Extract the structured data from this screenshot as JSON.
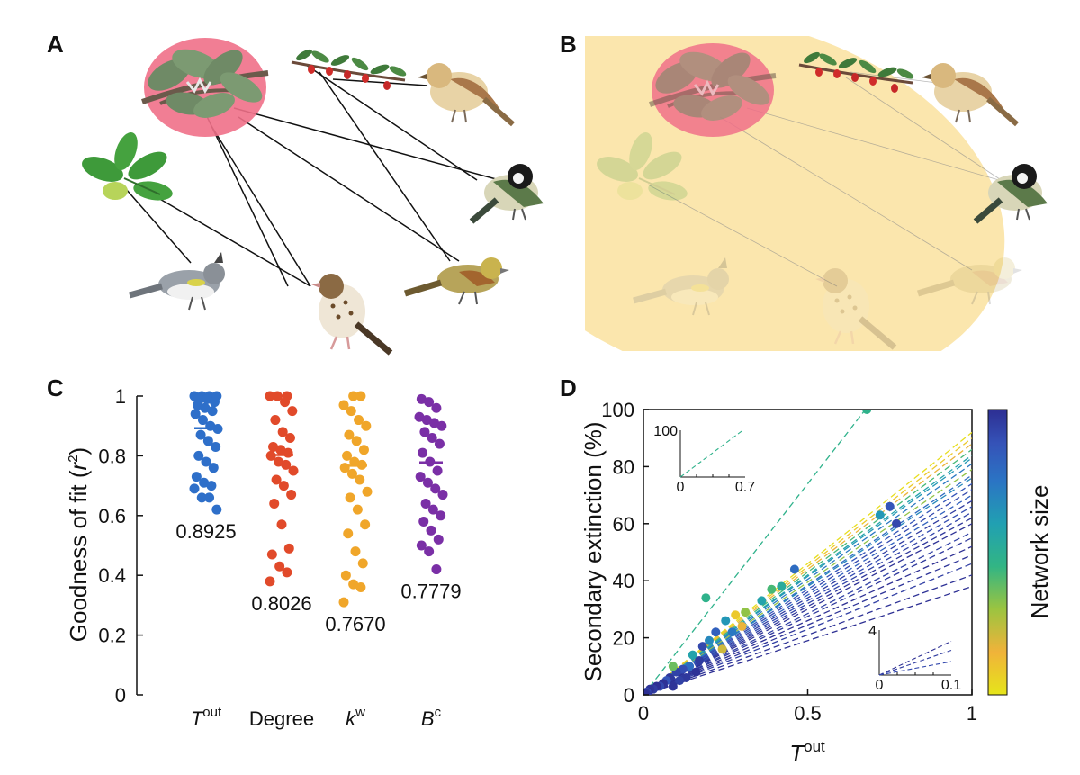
{
  "panels": {
    "a": {
      "label": "A"
    },
    "b": {
      "label": "B"
    },
    "c": {
      "label": "C"
    },
    "d": {
      "label": "D"
    }
  },
  "colors": {
    "web_highlight": "#f07088",
    "extinction_area": "#fbe6ad",
    "tout": "#2e6fc9",
    "degree": "#e14a2a",
    "kw": "#f0a62a",
    "bc": "#7a2fa6"
  },
  "icons": {
    "plant_top": "pine-branch-icon",
    "plant_right": "berry-branch-icon",
    "plant_left": "leaf-icon",
    "birds": [
      "sparrow-icon",
      "tit-icon",
      "warbler-icon",
      "thrush-icon",
      "bunting-icon"
    ]
  },
  "chart_data": [
    {
      "type": "scatter",
      "panel": "C",
      "ylabel_main": "Goodness of fit (",
      "ylabel_var": "r",
      "ylabel_sup": "2",
      "ylabel_end": ")",
      "ylim": [
        0,
        1
      ],
      "yticks": [
        "0",
        "0.2",
        "0.4",
        "0.6",
        "0.8",
        "1"
      ],
      "categories": [
        {
          "main": "T",
          "sup": "out"
        },
        {
          "main": "Degree",
          "sup": ""
        },
        {
          "main": "k",
          "sup": "w"
        },
        {
          "main": "B",
          "sup": "c"
        }
      ],
      "series": [
        {
          "values": [
            1.0,
            1.0,
            1.0,
            1.0,
            0.99,
            0.99,
            0.98,
            0.97,
            0.96,
            0.95,
            0.94,
            0.92,
            0.9,
            0.89,
            0.87,
            0.85,
            0.83,
            0.8,
            0.78,
            0.76,
            0.73,
            0.71,
            0.7,
            0.69,
            0.66,
            0.66,
            0.62
          ],
          "mean": 0.8925,
          "mean_label": "0.8925"
        },
        {
          "values": [
            1.0,
            1.0,
            1.0,
            0.98,
            0.95,
            0.92,
            0.88,
            0.86,
            0.83,
            0.82,
            0.81,
            0.8,
            0.78,
            0.77,
            0.75,
            0.72,
            0.7,
            0.67,
            0.64,
            0.57,
            0.49,
            0.47,
            0.43,
            0.41,
            0.38
          ],
          "mean": 0.8026,
          "mean_label": "0.8026"
        },
        {
          "values": [
            1.0,
            1.0,
            0.97,
            0.95,
            0.92,
            0.9,
            0.87,
            0.85,
            0.82,
            0.8,
            0.78,
            0.77,
            0.76,
            0.74,
            0.72,
            0.68,
            0.66,
            0.62,
            0.57,
            0.54,
            0.48,
            0.44,
            0.4,
            0.37,
            0.36,
            0.31
          ],
          "mean": 0.767,
          "mean_label": "0.7670"
        },
        {
          "values": [
            0.99,
            0.98,
            0.96,
            0.93,
            0.92,
            0.91,
            0.9,
            0.88,
            0.86,
            0.84,
            0.81,
            0.78,
            0.75,
            0.73,
            0.71,
            0.69,
            0.67,
            0.64,
            0.62,
            0.6,
            0.58,
            0.55,
            0.52,
            0.5,
            0.48,
            0.42
          ],
          "mean": 0.7779,
          "mean_label": "0.7779"
        }
      ]
    },
    {
      "type": "scatter",
      "panel": "D",
      "xlabel_main": "T",
      "xlabel_sup": "out",
      "ylabel": "Secondary extinction (%)",
      "xlim": [
        0,
        1
      ],
      "ylim": [
        0,
        100
      ],
      "xticks": [
        "0",
        "0.5",
        "1"
      ],
      "yticks": [
        "0",
        "20",
        "40",
        "60",
        "80",
        "100"
      ],
      "colorbar_label": "Network size",
      "colormap": [
        "#e6e51a",
        "#f0b33a",
        "#9cc440",
        "#32b584",
        "#21a0b2",
        "#2b74c4",
        "#3553b8",
        "#2d2f93"
      ],
      "lines": [
        {
          "slope": 148,
          "size": 0.45
        },
        {
          "slope": 92,
          "size": 0.02
        },
        {
          "slope": 90,
          "size": 0.08
        },
        {
          "slope": 88,
          "size": 0.15
        },
        {
          "slope": 86,
          "size": 0.4
        },
        {
          "slope": 84,
          "size": 0.55
        },
        {
          "slope": 83,
          "size": 0.6
        },
        {
          "slope": 81,
          "size": 0.7
        },
        {
          "slope": 79,
          "size": 0.3
        },
        {
          "slope": 77,
          "size": 0.75
        },
        {
          "slope": 76,
          "size": 0.65
        },
        {
          "slope": 74,
          "size": 0.85
        },
        {
          "slope": 72,
          "size": 0.9
        },
        {
          "slope": 70,
          "size": 0.8
        },
        {
          "slope": 68,
          "size": 0.95
        },
        {
          "slope": 66,
          "size": 0.88
        },
        {
          "slope": 64,
          "size": 0.92
        },
        {
          "slope": 62,
          "size": 0.97
        },
        {
          "slope": 60,
          "size": 0.99
        },
        {
          "slope": 57,
          "size": 0.93
        },
        {
          "slope": 55,
          "size": 0.96
        },
        {
          "slope": 52,
          "size": 1.0
        },
        {
          "slope": 49,
          "size": 0.98
        },
        {
          "slope": 46,
          "size": 0.94
        },
        {
          "slope": 42,
          "size": 0.99
        },
        {
          "slope": 38,
          "size": 1.0
        }
      ],
      "points": [
        {
          "x": 0.68,
          "y": 100,
          "size": 0.45
        },
        {
          "x": 0.19,
          "y": 34,
          "size": 0.45
        },
        {
          "x": 0.46,
          "y": 44,
          "size": 0.75
        },
        {
          "x": 0.72,
          "y": 63,
          "size": 0.6
        },
        {
          "x": 0.75,
          "y": 66,
          "size": 0.85
        },
        {
          "x": 0.77,
          "y": 60,
          "size": 0.9
        },
        {
          "x": 0.39,
          "y": 37,
          "size": 0.4
        },
        {
          "x": 0.42,
          "y": 38,
          "size": 0.5
        },
        {
          "x": 0.36,
          "y": 33,
          "size": 0.55
        },
        {
          "x": 0.31,
          "y": 29,
          "size": 0.3
        },
        {
          "x": 0.28,
          "y": 28,
          "size": 0.08
        },
        {
          "x": 0.25,
          "y": 26,
          "size": 0.6
        },
        {
          "x": 0.3,
          "y": 24,
          "size": 0.15
        },
        {
          "x": 0.27,
          "y": 22,
          "size": 0.7
        },
        {
          "x": 0.22,
          "y": 22,
          "size": 0.8
        },
        {
          "x": 0.2,
          "y": 19,
          "size": 0.65
        },
        {
          "x": 0.24,
          "y": 16,
          "size": 0.2
        },
        {
          "x": 0.18,
          "y": 17,
          "size": 0.9
        },
        {
          "x": 0.15,
          "y": 14,
          "size": 0.55
        },
        {
          "x": 0.17,
          "y": 12,
          "size": 0.95
        },
        {
          "x": 0.14,
          "y": 10,
          "size": 0.75
        },
        {
          "x": 0.12,
          "y": 9,
          "size": 0.88
        },
        {
          "x": 0.1,
          "y": 8,
          "size": 0.92
        },
        {
          "x": 0.09,
          "y": 10,
          "size": 0.35
        },
        {
          "x": 0.08,
          "y": 6,
          "size": 0.97
        },
        {
          "x": 0.07,
          "y": 5,
          "size": 0.85
        },
        {
          "x": 0.06,
          "y": 4,
          "size": 0.99
        },
        {
          "x": 0.05,
          "y": 3,
          "size": 0.9
        },
        {
          "x": 0.04,
          "y": 3,
          "size": 1.0
        },
        {
          "x": 0.03,
          "y": 2,
          "size": 0.95
        },
        {
          "x": 0.02,
          "y": 2,
          "size": 0.98
        },
        {
          "x": 0.015,
          "y": 1,
          "size": 1.0
        },
        {
          "x": 0.01,
          "y": 1,
          "size": 0.9
        },
        {
          "x": 0.008,
          "y": 0.5,
          "size": 0.97
        },
        {
          "x": 0.005,
          "y": 0.4,
          "size": 0.99
        },
        {
          "x": 0.003,
          "y": 0.2,
          "size": 1.0
        },
        {
          "x": 0.13,
          "y": 6,
          "size": 0.96
        },
        {
          "x": 0.11,
          "y": 5,
          "size": 0.93
        },
        {
          "x": 0.16,
          "y": 8,
          "size": 0.99
        },
        {
          "x": 0.09,
          "y": 3,
          "size": 0.98
        }
      ],
      "inset_top": {
        "xticks": [
          "0",
          "0.7"
        ],
        "ytick": "100",
        "xlim": [
          0,
          0.7
        ],
        "ylim": [
          0,
          100
        ],
        "line": {
          "slope": 148,
          "size": 0.45
        }
      },
      "inset_bottom": {
        "xticks": [
          "0",
          "0.1"
        ],
        "ytick": "4",
        "xlim": [
          0,
          0.1
        ],
        "ylim": [
          0,
          4
        ],
        "lines": [
          {
            "slope": 30,
            "size": 1.0
          },
          {
            "slope": 22,
            "size": 0.95
          },
          {
            "slope": 12,
            "size": 0.9
          }
        ]
      }
    }
  ]
}
